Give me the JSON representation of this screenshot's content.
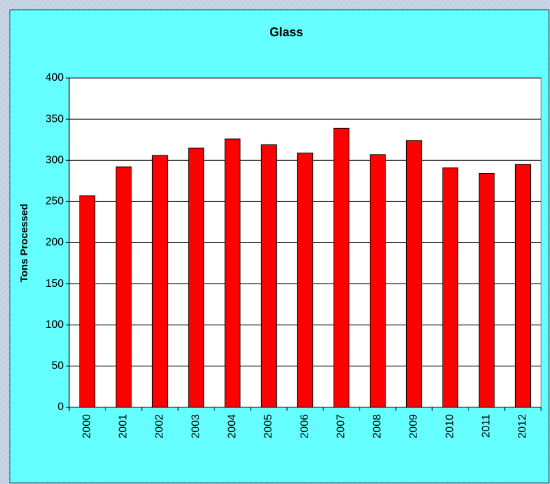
{
  "chart_data": {
    "type": "bar",
    "title": "Glass",
    "y_label": "Tons Processed",
    "categories": [
      "2000",
      "2001",
      "2002",
      "2003",
      "2004",
      "2005",
      "2006",
      "2007",
      "2008",
      "2009",
      "2010",
      "2011",
      "2012"
    ],
    "values": [
      257,
      292,
      306,
      315,
      326,
      319,
      309,
      339,
      307,
      324,
      291,
      284,
      295
    ],
    "color": "#ff0000",
    "ylim": [
      0,
      400
    ],
    "yticks": [
      0,
      50,
      100,
      150,
      200,
      250,
      300,
      350,
      400
    ],
    "grid": true
  }
}
